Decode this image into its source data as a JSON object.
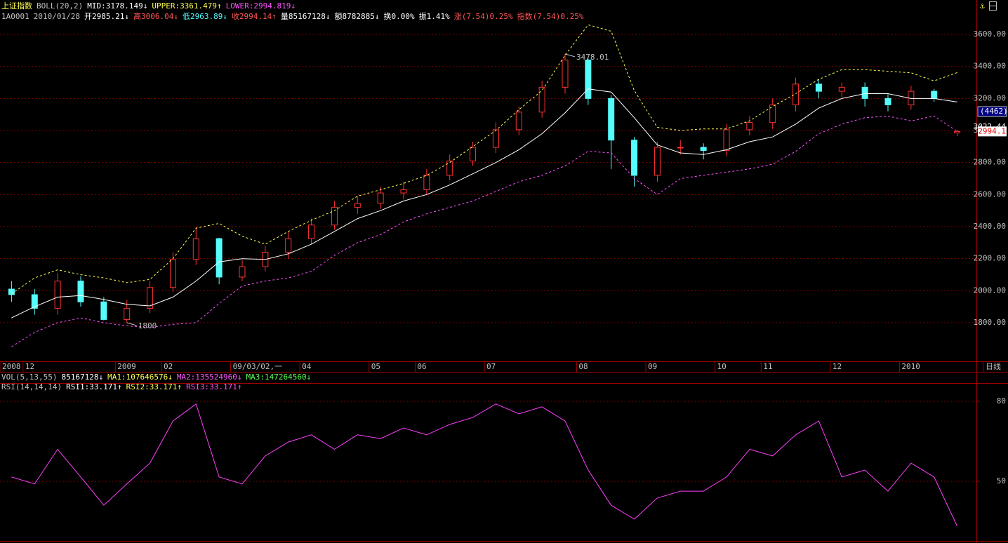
{
  "chart_data": [
    {
      "type": "candlestick",
      "title": "上证指数",
      "indicator": "BOLL(20,2)",
      "header_items": [
        {
          "text": "MID:3178.149↓",
          "color": "#ffffff"
        },
        {
          "text": "UPPER:3361.479↑",
          "color": "#ffff54"
        },
        {
          "text": "LOWER:2994.819↓",
          "color": "#ff54ff"
        }
      ],
      "info_items": [
        {
          "text": "1A0001",
          "color": "#c0c0c0"
        },
        {
          "text": "2010/01/28",
          "color": "#c0c0c0"
        },
        {
          "text": "开2985.21↓",
          "color": "#ffffff"
        },
        {
          "text": "高3006.04↓",
          "color": "#ff5454"
        },
        {
          "text": "低2963.89↓",
          "color": "#54fcfc"
        },
        {
          "text": "收2994.14↑",
          "color": "#ff5454"
        },
        {
          "text": "量85167128↓",
          "color": "#ffffff"
        },
        {
          "text": "额8782885↓",
          "color": "#ffffff"
        },
        {
          "text": "换0.00%",
          "color": "#ffffff"
        },
        {
          "text": "振1.41%",
          "color": "#ffffff"
        },
        {
          "text": "涨(7.54)0.25%",
          "color": "#ff5454"
        },
        {
          "text": "指数(7.54)0.25%",
          "color": "#ff5454"
        }
      ],
      "categories": [
        "2008",
        "12",
        null,
        null,
        null,
        "2009",
        null,
        "02",
        null,
        null,
        "09/03/02,一",
        null,
        null,
        "04",
        null,
        null,
        "05",
        null,
        "06",
        null,
        null,
        "07",
        null,
        null,
        null,
        "08",
        null,
        null,
        "09",
        null,
        null,
        "10",
        null,
        "11",
        null,
        null,
        "12",
        null,
        null,
        "2010",
        null,
        null
      ],
      "period_label": "日线",
      "open": [
        2010,
        1975,
        1890,
        2060,
        1930,
        1820,
        1890,
        2020,
        2195,
        2325,
        2085,
        2150,
        2240,
        2325,
        2410,
        2520,
        2545,
        2610,
        2630,
        2720,
        2810,
        2895,
        3005,
        3115,
        3270,
        3440,
        3200,
        2940,
        2720,
        2895,
        2895,
        2875,
        3005,
        3050,
        3160,
        3290,
        3245,
        3270,
        3200,
        3160,
        3245,
        2985.21
      ],
      "high": [
        2060,
        2010,
        2110,
        2090,
        1960,
        1940,
        2060,
        2240,
        2400,
        2330,
        2190,
        2280,
        2370,
        2450,
        2560,
        2590,
        2650,
        2680,
        2760,
        2850,
        2930,
        3050,
        3150,
        3310,
        3478.01,
        3450,
        3220,
        2960,
        2930,
        2940,
        2920,
        3040,
        3090,
        3200,
        3330,
        3320,
        3300,
        3300,
        3230,
        3280,
        3260,
        3006.04
      ],
      "low": [
        1930,
        1850,
        1850,
        1900,
        1814.75,
        1800,
        1860,
        1990,
        2160,
        2040,
        2060,
        2120,
        2200,
        2290,
        2380,
        2480,
        2510,
        2570,
        2600,
        2690,
        2780,
        2860,
        2970,
        3080,
        3230,
        3160,
        2760,
        2650,
        2680,
        2850,
        2820,
        2840,
        2970,
        3010,
        3120,
        3200,
        3210,
        3150,
        3120,
        3130,
        3180,
        2963.89
      ],
      "close": [
        1975,
        1890,
        2060,
        1930,
        1820,
        1890,
        2020,
        2195,
        2325,
        2085,
        2150,
        2240,
        2325,
        2410,
        2520,
        2545,
        2610,
        2630,
        2720,
        2810,
        2895,
        3005,
        3115,
        3270,
        3440,
        3200,
        2940,
        2720,
        2895,
        2895,
        2875,
        3005,
        3050,
        3160,
        3290,
        3245,
        3270,
        3200,
        3160,
        3245,
        3200,
        2994.14
      ],
      "up_color": "#ff3232",
      "down_color": "#54fcfc",
      "series": [
        {
          "color": "#ffffff",
          "dashed": false,
          "values": [
            1830,
            1900,
            1960,
            1970,
            1945,
            1915,
            1905,
            1960,
            2060,
            2180,
            2200,
            2195,
            2230,
            2290,
            2370,
            2450,
            2500,
            2560,
            2600,
            2660,
            2730,
            2800,
            2880,
            2980,
            3110,
            3260,
            3240,
            3080,
            2910,
            2860,
            2850,
            2880,
            2930,
            2960,
            3040,
            3140,
            3200,
            3230,
            3230,
            3200,
            3200,
            3178.149
          ]
        },
        {
          "color": "#ffff54",
          "dashed": true,
          "values": [
            1980,
            2080,
            2130,
            2100,
            2080,
            2050,
            2070,
            2200,
            2390,
            2420,
            2340,
            2290,
            2370,
            2440,
            2500,
            2590,
            2630,
            2670,
            2720,
            2800,
            2900,
            3000,
            3130,
            3250,
            3470,
            3660,
            3620,
            3250,
            3020,
            3000,
            3010,
            3010,
            3060,
            3150,
            3230,
            3320,
            3380,
            3380,
            3370,
            3360,
            3310,
            3361.479
          ]
        },
        {
          "color": "#ff54ff",
          "dashed": true,
          "values": [
            1650,
            1740,
            1800,
            1830,
            1800,
            1780,
            1770,
            1790,
            1800,
            1920,
            2030,
            2060,
            2080,
            2120,
            2220,
            2300,
            2350,
            2430,
            2480,
            2520,
            2560,
            2620,
            2680,
            2720,
            2780,
            2870,
            2860,
            2700,
            2600,
            2700,
            2720,
            2740,
            2760,
            2790,
            2870,
            2980,
            3040,
            3080,
            3090,
            3060,
            3090,
            2994.819
          ]
        }
      ],
      "ylim": [
        1559,
        3736
      ],
      "yticks": [
        {
          "value": 1800,
          "label": "1800.00"
        },
        {
          "value": 2000,
          "label": "2000.00"
        },
        {
          "value": 2200,
          "label": "2200.00"
        },
        {
          "value": 2400,
          "label": "2400.00"
        },
        {
          "value": 2600,
          "label": "2600.00"
        },
        {
          "value": 2800,
          "label": "2800.00"
        },
        {
          "value": 3000,
          "label": "3000.00"
        },
        {
          "value": 3200,
          "label": "3200.00"
        },
        {
          "value": 3400,
          "label": "3400.00"
        },
        {
          "value": 3600,
          "label": "3600.00"
        }
      ],
      "grid": true,
      "volume_tag": "(4462)",
      "price_marks": [
        3022.44,
        {
          "value": 2994.14,
          "label": "2994.1"
        }
      ]
    },
    {
      "type": "line",
      "vol_title": "VOL(5,13,55)",
      "vol_items": [
        {
          "text": "85167128↓",
          "color": "#ffffff"
        },
        {
          "text": "MA1:107646576↓",
          "color": "#ffff54"
        },
        {
          "text": "MA2:135524960↓",
          "color": "#ff54ff"
        },
        {
          "text": "MA3:147264560↓",
          "color": "#54ff54"
        }
      ],
      "title": "RSI(14,14,14)",
      "header_items": [
        {
          "text": "RSI1:33.171↑",
          "color": "#ffffff"
        },
        {
          "text": "RSI2:33.171↑",
          "color": "#ffff54"
        },
        {
          "text": "RSI3:33.171↑",
          "color": "#ff54ff"
        }
      ],
      "series": [
        {
          "color": "#ff40ff",
          "dashed": false,
          "values": [
            51.6,
            49,
            62,
            51.6,
            41,
            49,
            56.8,
            72.6,
            79,
            51.6,
            49,
            59.5,
            64.7,
            67.4,
            62,
            67.4,
            66,
            70,
            67.4,
            71.3,
            73.9,
            79,
            75.3,
            77.9,
            72.6,
            54.2,
            41,
            35.8,
            43.7,
            46.3,
            46.3,
            51.6,
            62,
            59.5,
            67.4,
            72.6,
            51.6,
            54.2,
            46.3,
            56.8,
            51.6,
            33.171
          ]
        }
      ],
      "ylim": [
        27.9,
        86.3
      ],
      "yticks": [
        50,
        80
      ],
      "grid": true
    }
  ]
}
